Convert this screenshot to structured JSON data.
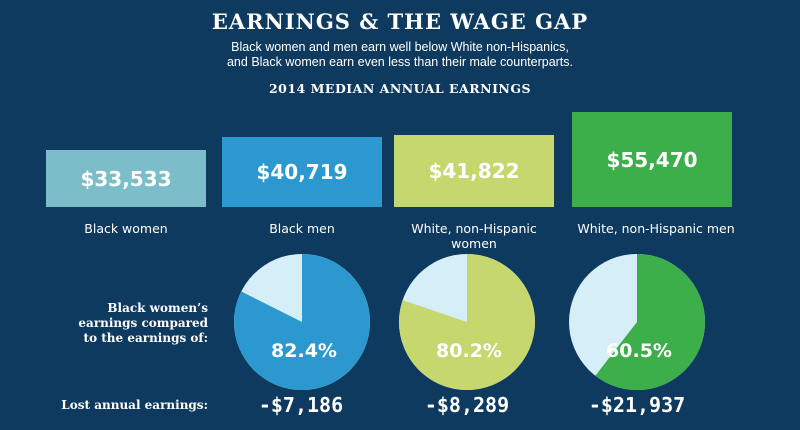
{
  "header": {
    "title": "EARNINGS & THE WAGE GAP",
    "subtitle_line1": "Black women and men earn well below White non-Hispanics,",
    "subtitle_line2": "and Black women earn even less than their male counterparts.",
    "section_title": "2014 MEDIAN ANNUAL EARNINGS"
  },
  "comparison": {
    "label_line1": "Black women’s",
    "label_line2": "earnings compared",
    "label_line3": "to the earnings of:",
    "lost_label": "Lost annual earnings:"
  },
  "colors": {
    "background": "#0f3a5f",
    "black_women": "#7bbdc8",
    "black_men": "#2b99cf",
    "white_women": "#c6d76e",
    "white_men": "#3cae4a",
    "pie_remainder": "#d6eef8"
  },
  "chart_data": [
    {
      "type": "bar",
      "title": "2014 MEDIAN ANNUAL EARNINGS",
      "categories": [
        "Black women",
        "Black men",
        "White, non-Hispanic women",
        "White, non-Hispanic men"
      ],
      "values": [
        33533,
        40719,
        41822,
        55470
      ],
      "value_labels": [
        "$33,533",
        "$40,719",
        "$41,822",
        "$55,470"
      ]
    },
    {
      "type": "pie",
      "title": "Black women’s earnings compared to the earnings of:",
      "slices": [
        {
          "category": "Black men",
          "value": 82.4,
          "label": "82.4%",
          "lost": -7186,
          "lost_label": "-$7,186"
        },
        {
          "category": "White, non-Hispanic women",
          "value": 80.2,
          "label": "80.2%",
          "lost": -8289,
          "lost_label": "-$8,289"
        },
        {
          "category": "White, non-Hispanic men",
          "value": 60.5,
          "label": "60.5%",
          "lost": -21937,
          "lost_label": "-$21,937"
        }
      ]
    }
  ]
}
